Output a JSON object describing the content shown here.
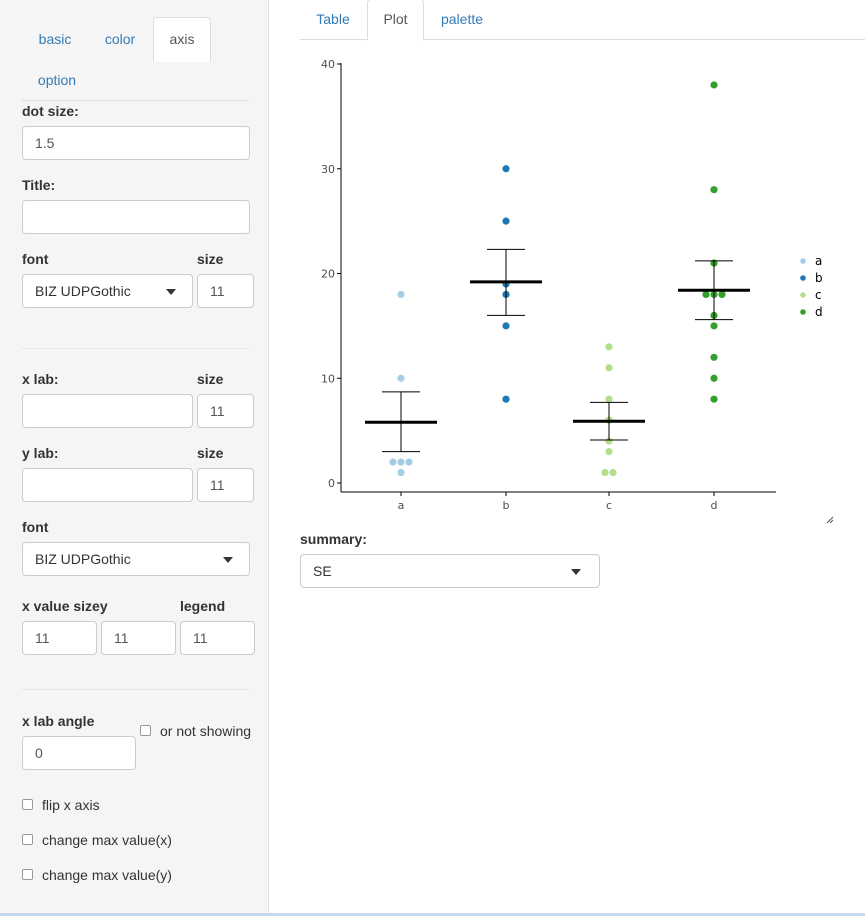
{
  "sidebar": {
    "tabs": [
      {
        "label": "basic",
        "active": false
      },
      {
        "label": "color",
        "active": false
      },
      {
        "label": "axis",
        "active": true
      },
      {
        "label": "option",
        "active": false
      }
    ],
    "dot_size": {
      "label": "dot size:",
      "value": "1.5"
    },
    "title": {
      "label": "Title:",
      "value": ""
    },
    "font1": {
      "label": "font",
      "value": "BIZ UDPGothic",
      "size_label": "size",
      "size_value": "11"
    },
    "xlab": {
      "label": "x lab:",
      "value": "",
      "size_label": "size",
      "size_value": "11"
    },
    "ylab": {
      "label": "y lab:",
      "value": "",
      "size_label": "size",
      "size_value": "11"
    },
    "font2": {
      "label": "font",
      "value": "BIZ UDPGothic"
    },
    "value_size": {
      "label": "x value sizey",
      "legend_label": "legend",
      "x": "11",
      "y": "11",
      "legend": "11"
    },
    "xlab_angle": {
      "label": "x lab angle",
      "value": "0",
      "not_showing": "or not showing"
    },
    "checkboxes": {
      "flip_x": "flip x axis",
      "max_x": "change max value(x)",
      "max_y": "change max value(y)"
    }
  },
  "main": {
    "tabs": [
      {
        "label": "Table",
        "active": false
      },
      {
        "label": "Plot",
        "active": true
      },
      {
        "label": "palette",
        "active": false
      }
    ],
    "summary": {
      "label": "summary:",
      "value": "SE"
    }
  },
  "chart_data": {
    "type": "scatter",
    "title": "",
    "xlabel": "",
    "ylabel": "",
    "categories": [
      "a",
      "b",
      "c",
      "d"
    ],
    "ylim": [
      0,
      40
    ],
    "yticks": [
      0,
      10,
      20,
      30,
      40
    ],
    "grid": false,
    "legend_position": "right",
    "series": [
      {
        "name": "a",
        "color": "#a6cee3",
        "points": [
          1,
          2,
          2,
          2,
          10,
          18
        ],
        "mean": 5.8,
        "se_low": 3.0,
        "se_high": 8.7
      },
      {
        "name": "b",
        "color": "#1f78b4",
        "points": [
          8,
          15,
          18,
          19,
          25,
          30
        ],
        "mean": 19.2,
        "se_low": 16.0,
        "se_high": 22.3
      },
      {
        "name": "c",
        "color": "#b2df8a",
        "points": [
          1,
          1,
          3,
          4,
          6,
          8,
          11,
          13
        ],
        "mean": 5.9,
        "se_low": 4.1,
        "se_high": 7.7
      },
      {
        "name": "d",
        "color": "#33a02c",
        "points": [
          8,
          10,
          12,
          15,
          16,
          18,
          18,
          18,
          21,
          28,
          38
        ],
        "mean": 18.4,
        "se_low": 15.6,
        "se_high": 21.2
      }
    ]
  }
}
